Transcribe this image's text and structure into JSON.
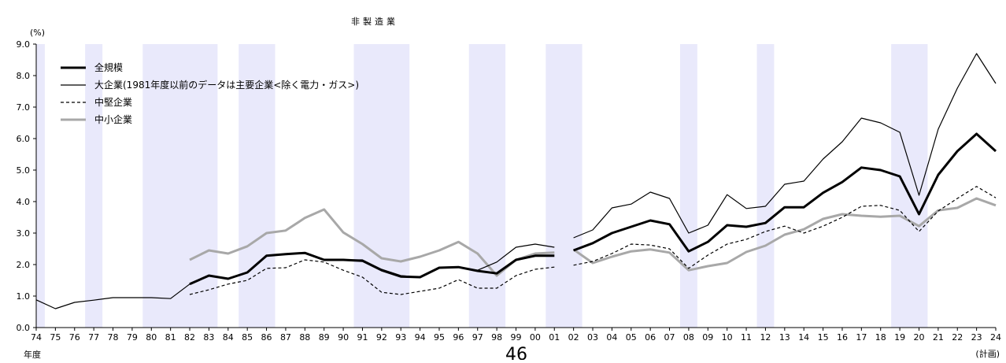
{
  "page_number": "46",
  "chart_data": {
    "type": "line",
    "title": "非製造業",
    "ylabel": "(%)",
    "xlabel": "年度",
    "x_note": "(計画)",
    "ylim": [
      0.0,
      9.0
    ],
    "y_ticks": [
      "0.0",
      "1.0",
      "2.0",
      "3.0",
      "4.0",
      "5.0",
      "6.0",
      "7.0",
      "8.0",
      "9.0"
    ],
    "categories": [
      "74",
      "75",
      "76",
      "77",
      "78",
      "79",
      "80",
      "81",
      "82",
      "83",
      "84",
      "85",
      "86",
      "87",
      "88",
      "89",
      "90",
      "91",
      "92",
      "93",
      "94",
      "95",
      "96",
      "97",
      "98",
      "99",
      "00",
      "01",
      "02",
      "03",
      "04",
      "05",
      "06",
      "07",
      "08",
      "09",
      "10",
      "11",
      "12",
      "13",
      "14",
      "15",
      "16",
      "17",
      "18",
      "19",
      "20",
      "21",
      "22",
      "23",
      "24"
    ],
    "shaded_periods": [
      [
        "74",
        "74"
      ],
      [
        "77",
        "77"
      ],
      [
        "80",
        "83"
      ],
      [
        "85",
        "86"
      ],
      [
        "91",
        "93"
      ],
      [
        "97",
        "98"
      ],
      [
        "01",
        "02"
      ],
      [
        "08",
        "08"
      ],
      [
        "12",
        "12"
      ],
      [
        "19",
        "20"
      ]
    ],
    "series_break_after": "01",
    "grid": false,
    "legend_position": "top-left",
    "series": [
      {
        "name": "全規模",
        "style": "bold",
        "values": [
          null,
          null,
          null,
          null,
          null,
          null,
          null,
          null,
          1.38,
          1.65,
          1.55,
          1.75,
          2.28,
          2.33,
          2.37,
          2.15,
          2.15,
          2.12,
          1.82,
          1.62,
          1.6,
          1.9,
          1.92,
          1.8,
          1.72,
          2.15,
          2.28,
          2.28,
          2.45,
          2.68,
          3.0,
          3.2,
          3.4,
          3.28,
          2.42,
          2.72,
          3.25,
          3.2,
          3.32,
          3.82,
          3.82,
          4.28,
          4.62,
          5.08,
          5.0,
          4.8,
          3.6,
          4.85,
          5.6,
          6.15,
          5.6
        ]
      },
      {
        "name": "大企業(1981年度以前のデータは主要企業<除く電力・ガス>)",
        "style": "thin",
        "values": [
          0.88,
          0.6,
          0.8,
          0.87,
          0.95,
          0.95,
          0.95,
          0.92,
          1.38,
          1.65,
          1.55,
          1.75,
          2.28,
          2.33,
          2.37,
          2.15,
          2.15,
          2.15,
          1.85,
          1.65,
          1.6,
          1.9,
          1.92,
          1.82,
          2.08,
          2.55,
          2.65,
          2.55,
          2.85,
          3.1,
          3.8,
          3.92,
          4.3,
          4.1,
          3.0,
          3.25,
          4.22,
          3.78,
          3.85,
          4.55,
          4.65,
          5.35,
          5.9,
          6.65,
          6.5,
          6.2,
          4.2,
          6.3,
          7.6,
          8.7,
          7.75
        ]
      },
      {
        "name": "中堅企業",
        "style": "dashed",
        "values": [
          null,
          null,
          null,
          null,
          null,
          null,
          null,
          null,
          1.05,
          1.2,
          1.38,
          1.5,
          1.88,
          1.9,
          2.15,
          2.08,
          1.82,
          1.6,
          1.12,
          1.05,
          1.15,
          1.25,
          1.52,
          1.25,
          1.25,
          1.65,
          1.85,
          1.92,
          1.98,
          2.1,
          2.35,
          2.65,
          2.62,
          2.5,
          1.88,
          2.3,
          2.65,
          2.8,
          3.05,
          3.22,
          3.0,
          3.22,
          3.5,
          3.85,
          3.88,
          3.72,
          3.05,
          3.7,
          4.1,
          4.48,
          4.12
        ]
      },
      {
        "name": "中小企業",
        "style": "gray",
        "values": [
          null,
          null,
          null,
          null,
          null,
          null,
          null,
          null,
          2.15,
          2.45,
          2.35,
          2.58,
          3.0,
          3.08,
          3.48,
          3.75,
          3.02,
          2.65,
          2.2,
          2.1,
          2.25,
          2.45,
          2.72,
          2.35,
          1.65,
          2.15,
          2.35,
          2.38,
          2.48,
          2.05,
          2.25,
          2.42,
          2.48,
          2.38,
          1.82,
          1.95,
          2.05,
          2.4,
          2.6,
          2.95,
          3.12,
          3.45,
          3.6,
          3.55,
          3.52,
          3.55,
          3.22,
          3.72,
          3.8,
          4.1,
          3.88
        ]
      }
    ]
  }
}
